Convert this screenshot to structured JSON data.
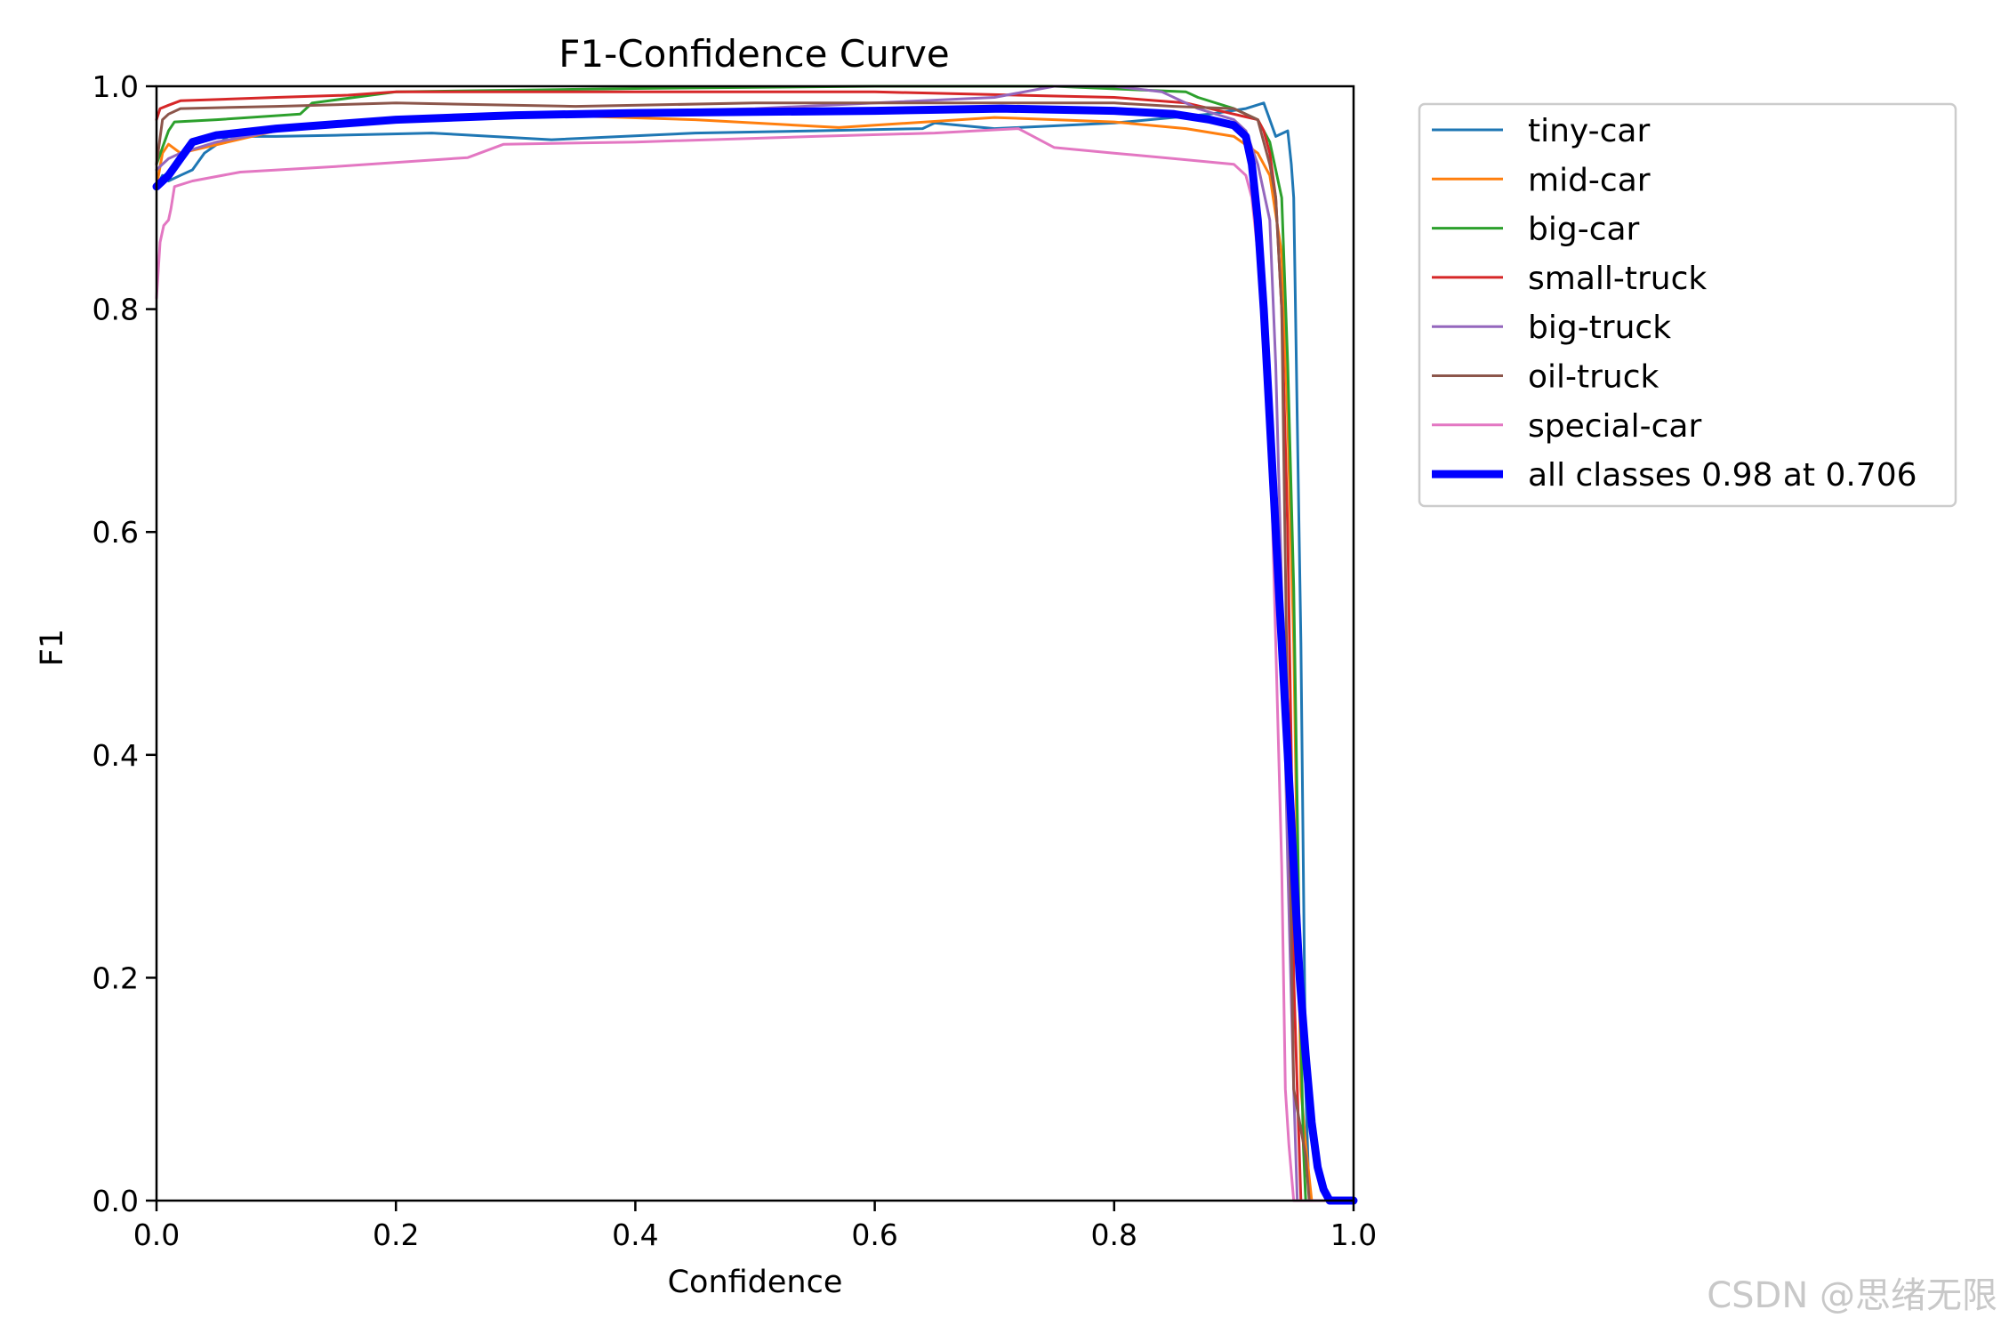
{
  "chart_data": {
    "type": "line",
    "title": "F1-Confidence Curve",
    "xlabel": "Confidence",
    "ylabel": "F1",
    "xlim": [
      0,
      1
    ],
    "ylim": [
      0,
      1
    ],
    "xticks": [
      "0.0",
      "0.2",
      "0.4",
      "0.6",
      "0.8",
      "1.0"
    ],
    "yticks": [
      "0.0",
      "0.2",
      "0.4",
      "0.6",
      "0.8",
      "1.0"
    ],
    "grid": false,
    "legend_position": "outside-top-right",
    "series": [
      {
        "name": "tiny-car",
        "color": "#1f77b4",
        "width": 3,
        "points": [
          [
            0,
            0.91
          ],
          [
            0.005,
            0.92
          ],
          [
            0.01,
            0.915
          ],
          [
            0.02,
            0.92
          ],
          [
            0.03,
            0.925
          ],
          [
            0.04,
            0.94
          ],
          [
            0.06,
            0.955
          ],
          [
            0.1,
            0.955
          ],
          [
            0.15,
            0.956
          ],
          [
            0.23,
            0.958
          ],
          [
            0.33,
            0.952
          ],
          [
            0.45,
            0.958
          ],
          [
            0.55,
            0.96
          ],
          [
            0.64,
            0.962
          ],
          [
            0.65,
            0.967
          ],
          [
            0.7,
            0.962
          ],
          [
            0.8,
            0.967
          ],
          [
            0.88,
            0.975
          ],
          [
            0.91,
            0.98
          ],
          [
            0.925,
            0.985
          ],
          [
            0.93,
            0.97
          ],
          [
            0.935,
            0.955
          ],
          [
            0.945,
            0.96
          ],
          [
            0.948,
            0.93
          ],
          [
            0.95,
            0.9
          ],
          [
            0.953,
            0.7
          ],
          [
            0.956,
            0.5
          ],
          [
            0.958,
            0.3
          ],
          [
            0.96,
            0.1
          ],
          [
            0.963,
            0.0
          ],
          [
            1.0,
            0.0
          ]
        ]
      },
      {
        "name": "mid-car",
        "color": "#ff7f0e",
        "width": 3,
        "points": [
          [
            0,
            0.91
          ],
          [
            0.005,
            0.94
          ],
          [
            0.01,
            0.948
          ],
          [
            0.02,
            0.94
          ],
          [
            0.04,
            0.945
          ],
          [
            0.1,
            0.96
          ],
          [
            0.2,
            0.97
          ],
          [
            0.3,
            0.975
          ],
          [
            0.45,
            0.97
          ],
          [
            0.57,
            0.963
          ],
          [
            0.7,
            0.972
          ],
          [
            0.8,
            0.968
          ],
          [
            0.86,
            0.962
          ],
          [
            0.9,
            0.955
          ],
          [
            0.92,
            0.94
          ],
          [
            0.93,
            0.92
          ],
          [
            0.94,
            0.85
          ],
          [
            0.945,
            0.7
          ],
          [
            0.95,
            0.5
          ],
          [
            0.953,
            0.3
          ],
          [
            0.956,
            0.1
          ],
          [
            0.96,
            0.05
          ],
          [
            0.965,
            0.0
          ],
          [
            1.0,
            0.0
          ]
        ]
      },
      {
        "name": "big-car",
        "color": "#2ca02c",
        "width": 3,
        "points": [
          [
            0,
            0.93
          ],
          [
            0.005,
            0.945
          ],
          [
            0.01,
            0.96
          ],
          [
            0.015,
            0.968
          ],
          [
            0.05,
            0.97
          ],
          [
            0.12,
            0.975
          ],
          [
            0.13,
            0.985
          ],
          [
            0.2,
            0.995
          ],
          [
            0.4,
            0.998
          ],
          [
            0.6,
            1.0
          ],
          [
            0.75,
            1.0
          ],
          [
            0.86,
            0.995
          ],
          [
            0.87,
            0.99
          ],
          [
            0.9,
            0.98
          ],
          [
            0.92,
            0.97
          ],
          [
            0.93,
            0.95
          ],
          [
            0.94,
            0.9
          ],
          [
            0.945,
            0.75
          ],
          [
            0.95,
            0.55
          ],
          [
            0.953,
            0.35
          ],
          [
            0.956,
            0.15
          ],
          [
            0.958,
            0.05
          ],
          [
            0.96,
            0.0
          ],
          [
            1.0,
            0.0
          ]
        ]
      },
      {
        "name": "small-truck",
        "color": "#d62728",
        "width": 3,
        "points": [
          [
            0,
            0.97
          ],
          [
            0.003,
            0.98
          ],
          [
            0.01,
            0.983
          ],
          [
            0.02,
            0.987
          ],
          [
            0.1,
            0.99
          ],
          [
            0.16,
            0.992
          ],
          [
            0.2,
            0.995
          ],
          [
            0.4,
            0.995
          ],
          [
            0.6,
            0.995
          ],
          [
            0.8,
            0.99
          ],
          [
            0.86,
            0.985
          ],
          [
            0.9,
            0.975
          ],
          [
            0.92,
            0.97
          ],
          [
            0.925,
            0.96
          ],
          [
            0.93,
            0.94
          ],
          [
            0.935,
            0.9
          ],
          [
            0.94,
            0.8
          ],
          [
            0.945,
            0.6
          ],
          [
            0.948,
            0.4
          ],
          [
            0.95,
            0.2
          ],
          [
            0.953,
            0.1
          ],
          [
            0.956,
            0.0
          ],
          [
            1.0,
            0.0
          ]
        ]
      },
      {
        "name": "big-truck",
        "color": "#9467bd",
        "width": 3,
        "points": [
          [
            0,
            0.925
          ],
          [
            0.005,
            0.93
          ],
          [
            0.01,
            0.935
          ],
          [
            0.02,
            0.94
          ],
          [
            0.05,
            0.95
          ],
          [
            0.1,
            0.96
          ],
          [
            0.2,
            0.97
          ],
          [
            0.3,
            0.975
          ],
          [
            0.5,
            0.98
          ],
          [
            0.6,
            0.985
          ],
          [
            0.7,
            0.99
          ],
          [
            0.75,
            1.0
          ],
          [
            0.8,
            1.0
          ],
          [
            0.84,
            0.995
          ],
          [
            0.87,
            0.98
          ],
          [
            0.9,
            0.97
          ],
          [
            0.91,
            0.96
          ],
          [
            0.92,
            0.93
          ],
          [
            0.93,
            0.88
          ],
          [
            0.935,
            0.75
          ],
          [
            0.94,
            0.55
          ],
          [
            0.945,
            0.3
          ],
          [
            0.95,
            0.1
          ],
          [
            0.953,
            0.0
          ],
          [
            1.0,
            0.0
          ]
        ]
      },
      {
        "name": "oil-truck",
        "color": "#8c564b",
        "width": 3,
        "points": [
          [
            0,
            0.93
          ],
          [
            0.005,
            0.97
          ],
          [
            0.01,
            0.975
          ],
          [
            0.02,
            0.98
          ],
          [
            0.1,
            0.982
          ],
          [
            0.2,
            0.985
          ],
          [
            0.35,
            0.982
          ],
          [
            0.5,
            0.985
          ],
          [
            0.6,
            0.985
          ],
          [
            0.7,
            0.985
          ],
          [
            0.8,
            0.985
          ],
          [
            0.85,
            0.982
          ],
          [
            0.9,
            0.98
          ],
          [
            0.92,
            0.97
          ],
          [
            0.925,
            0.95
          ],
          [
            0.93,
            0.93
          ],
          [
            0.935,
            0.9
          ],
          [
            0.94,
            0.8
          ],
          [
            0.944,
            0.5
          ],
          [
            0.947,
            0.3
          ],
          [
            0.95,
            0.1
          ],
          [
            0.955,
            0.07
          ],
          [
            0.96,
            0.04
          ],
          [
            0.963,
            0.0
          ],
          [
            1.0,
            0.0
          ]
        ]
      },
      {
        "name": "special-car",
        "color": "#e377c2",
        "width": 3,
        "points": [
          [
            0,
            0.81
          ],
          [
            0.003,
            0.86
          ],
          [
            0.006,
            0.875
          ],
          [
            0.01,
            0.88
          ],
          [
            0.012,
            0.89
          ],
          [
            0.015,
            0.91
          ],
          [
            0.03,
            0.915
          ],
          [
            0.07,
            0.923
          ],
          [
            0.15,
            0.928
          ],
          [
            0.26,
            0.936
          ],
          [
            0.29,
            0.948
          ],
          [
            0.4,
            0.95
          ],
          [
            0.55,
            0.955
          ],
          [
            0.65,
            0.958
          ],
          [
            0.72,
            0.962
          ],
          [
            0.75,
            0.945
          ],
          [
            0.8,
            0.94
          ],
          [
            0.85,
            0.935
          ],
          [
            0.9,
            0.93
          ],
          [
            0.91,
            0.92
          ],
          [
            0.915,
            0.9
          ],
          [
            0.92,
            0.85
          ],
          [
            0.925,
            0.8
          ],
          [
            0.93,
            0.7
          ],
          [
            0.935,
            0.5
          ],
          [
            0.94,
            0.3
          ],
          [
            0.943,
            0.1
          ],
          [
            0.946,
            0.05
          ],
          [
            0.95,
            0.0
          ],
          [
            1.0,
            0.0
          ]
        ]
      },
      {
        "name": "all classes 0.98 at 0.706",
        "color": "#0000ff",
        "width": 9,
        "points": [
          [
            0,
            0.91
          ],
          [
            0.01,
            0.92
          ],
          [
            0.02,
            0.935
          ],
          [
            0.03,
            0.95
          ],
          [
            0.05,
            0.956
          ],
          [
            0.1,
            0.962
          ],
          [
            0.2,
            0.97
          ],
          [
            0.3,
            0.974
          ],
          [
            0.4,
            0.976
          ],
          [
            0.5,
            0.977
          ],
          [
            0.6,
            0.978
          ],
          [
            0.706,
            0.98
          ],
          [
            0.8,
            0.978
          ],
          [
            0.85,
            0.975
          ],
          [
            0.88,
            0.97
          ],
          [
            0.9,
            0.965
          ],
          [
            0.91,
            0.955
          ],
          [
            0.915,
            0.93
          ],
          [
            0.92,
            0.88
          ],
          [
            0.925,
            0.8
          ],
          [
            0.93,
            0.7
          ],
          [
            0.935,
            0.6
          ],
          [
            0.94,
            0.5
          ],
          [
            0.945,
            0.4
          ],
          [
            0.95,
            0.3
          ],
          [
            0.955,
            0.2
          ],
          [
            0.96,
            0.13
          ],
          [
            0.965,
            0.07
          ],
          [
            0.97,
            0.03
          ],
          [
            0.975,
            0.01
          ],
          [
            0.98,
            0.0
          ],
          [
            1.0,
            0.0
          ]
        ]
      }
    ]
  },
  "watermark": "CSDN @思绪无限"
}
